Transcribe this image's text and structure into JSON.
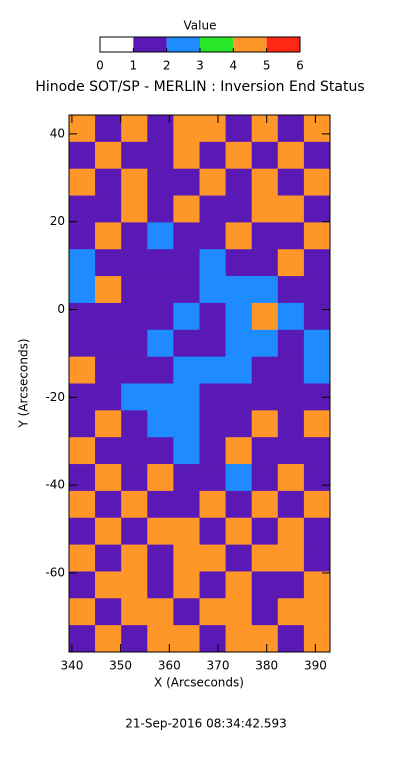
{
  "chart_data": {
    "type": "heatmap",
    "title": "Hinode SOT/SP - MERLIN : Inversion End Status",
    "x_label": "X (Arcseconds)",
    "y_label": "Y (Arcseconds)",
    "footer": "21-Sep-2016 08:34:42.593",
    "xlim": [
      339.4,
      393
    ],
    "ylim": [
      -78,
      44.3
    ],
    "xticks": [
      340,
      350,
      360,
      370,
      380,
      390
    ],
    "yticks": [
      -60,
      -40,
      -20,
      0,
      20,
      40
    ],
    "colorbar": {
      "title": "Value",
      "lim": [
        0,
        6
      ],
      "ticks": [
        0,
        1,
        2,
        3,
        4,
        5,
        6
      ],
      "colors": [
        "#ffffff",
        "#5a18b4",
        "#1e8cff",
        "#28e628",
        "#ff9628",
        "#ff2814"
      ]
    },
    "z": [
      [
        4,
        1,
        4,
        1,
        4,
        4,
        1,
        4,
        1,
        4
      ],
      [
        1,
        4,
        1,
        1,
        4,
        1,
        4,
        1,
        4,
        1
      ],
      [
        4,
        1,
        4,
        1,
        1,
        4,
        1,
        4,
        1,
        4
      ],
      [
        1,
        1,
        4,
        1,
        4,
        1,
        1,
        4,
        4,
        1
      ],
      [
        1,
        4,
        1,
        2,
        1,
        1,
        4,
        1,
        1,
        4
      ],
      [
        2,
        1,
        1,
        1,
        1,
        2,
        1,
        1,
        4,
        1
      ],
      [
        2,
        4,
        1,
        1,
        1,
        2,
        2,
        2,
        1,
        1
      ],
      [
        1,
        1,
        1,
        1,
        2,
        1,
        2,
        4,
        2,
        1
      ],
      [
        1,
        1,
        1,
        2,
        1,
        1,
        2,
        2,
        1,
        2
      ],
      [
        4,
        1,
        1,
        1,
        2,
        2,
        2,
        1,
        1,
        2
      ],
      [
        1,
        1,
        2,
        2,
        2,
        1,
        1,
        1,
        1,
        1
      ],
      [
        1,
        4,
        1,
        2,
        2,
        1,
        1,
        4,
        1,
        4
      ],
      [
        4,
        1,
        1,
        1,
        2,
        1,
        4,
        1,
        1,
        1
      ],
      [
        1,
        4,
        1,
        4,
        1,
        1,
        2,
        1,
        4,
        1
      ],
      [
        4,
        1,
        4,
        1,
        1,
        4,
        1,
        4,
        1,
        4
      ],
      [
        1,
        4,
        1,
        4,
        4,
        1,
        4,
        1,
        4,
        1
      ],
      [
        4,
        1,
        4,
        1,
        4,
        4,
        1,
        4,
        4,
        1
      ],
      [
        1,
        4,
        4,
        1,
        4,
        1,
        4,
        1,
        1,
        4
      ],
      [
        4,
        1,
        4,
        4,
        1,
        4,
        4,
        1,
        4,
        4
      ],
      [
        1,
        4,
        1,
        4,
        4,
        1,
        4,
        4,
        1,
        4
      ]
    ]
  }
}
